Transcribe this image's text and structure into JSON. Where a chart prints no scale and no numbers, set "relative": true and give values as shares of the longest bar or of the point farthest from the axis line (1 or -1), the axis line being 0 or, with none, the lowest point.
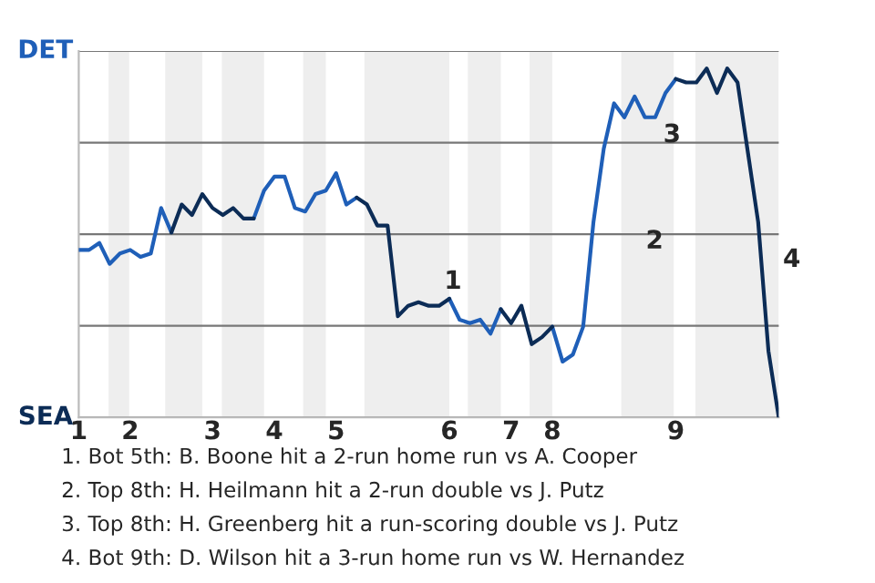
{
  "chart_data": {
    "type": "line",
    "relative": true,
    "categories": [
      "1",
      null,
      null,
      null,
      null,
      "2",
      null,
      null,
      null,
      null,
      null,
      null,
      null,
      "3",
      null,
      null,
      null,
      null,
      null,
      "4",
      null,
      null,
      null,
      null,
      null,
      "5",
      null,
      null,
      null,
      null,
      null,
      null,
      null,
      null,
      null,
      null,
      "6",
      null,
      null,
      null,
      null,
      null,
      "7",
      null,
      null,
      null,
      "8",
      null,
      null,
      null,
      null,
      null,
      null,
      null,
      null,
      null,
      null,
      null,
      "9",
      null,
      null,
      null,
      null,
      null,
      null,
      null,
      null,
      null,
      null
    ],
    "series": [
      {
        "color": "#1f5fb8",
        "values": [
          0.48,
          0.48,
          0.5,
          0.44,
          0.47,
          0.48,
          0.46,
          0.47,
          0.6,
          0.53,
          null,
          null,
          null,
          null,
          null,
          null,
          null,
          0.57,
          0.65,
          0.69,
          0.69,
          0.6,
          0.59,
          0.64,
          0.65,
          0.7,
          0.61,
          0.63,
          null,
          null,
          null,
          null,
          null,
          null,
          null,
          null,
          0.34,
          0.28,
          0.27,
          0.28,
          0.24,
          0.31,
          null,
          null,
          null,
          null,
          0.26,
          0.16,
          0.18,
          0.26,
          0.56,
          0.77,
          0.9,
          0.86,
          0.92,
          0.86,
          0.86,
          0.93,
          0.97,
          null,
          null,
          null,
          null,
          null,
          null,
          null,
          null,
          null,
          null
        ]
      },
      {
        "color": "#0c2c56",
        "values": [
          null,
          null,
          null,
          null,
          null,
          null,
          null,
          null,
          null,
          0.53,
          0.61,
          0.58,
          0.64,
          0.6,
          0.58,
          0.6,
          0.57,
          0.57,
          null,
          null,
          null,
          null,
          null,
          null,
          null,
          null,
          null,
          0.63,
          0.61,
          0.55,
          0.55,
          0.29,
          0.32,
          0.33,
          0.32,
          0.32,
          0.34,
          null,
          null,
          null,
          null,
          0.31,
          0.27,
          0.32,
          0.21,
          0.23,
          0.26,
          null,
          null,
          null,
          null,
          null,
          null,
          null,
          null,
          null,
          null,
          null,
          0.97,
          0.96,
          0.96,
          1,
          0.93,
          1,
          0.96,
          0.76,
          0.56,
          0.19,
          0
        ]
      }
    ],
    "grid": "y",
    "annotations": [
      "DET",
      "SEA",
      "1",
      "2",
      "3",
      "4",
      "1. Bot 5th: B. Boone hit a 2-run home run vs A. Cooper",
      "2. Top 8th: H. Heilmann hit a 2-run double vs J. Putz",
      "3. Top 8th: H. Greenberg hit a run-scoring double vs J. Putz",
      "4. Bot 9th: D. Wilson hit a 3-run home run vs W. Hernandez"
    ]
  }
}
